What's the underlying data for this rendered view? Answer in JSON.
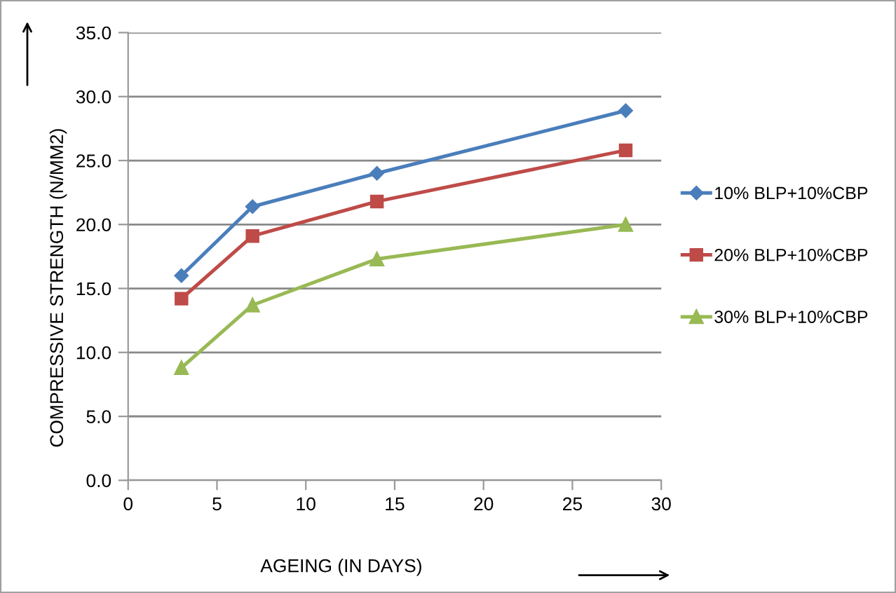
{
  "chart_data": {
    "type": "line",
    "xlabel": "AGEING (IN DAYS)",
    "ylabel": "COMPRESSIVE STRENGTH (N/MM2)",
    "x": [
      3,
      7,
      14,
      28
    ],
    "series": [
      {
        "name": "10% BLP+10%CBP",
        "color": "#4a7ebb",
        "marker": "diamond",
        "values": [
          16.0,
          21.4,
          24.0,
          28.9
        ]
      },
      {
        "name": "20% BLP+10%CBP",
        "color": "#be4b48",
        "marker": "square",
        "values": [
          14.2,
          19.1,
          21.8,
          25.8
        ]
      },
      {
        "name": "30% BLP+10%CBP",
        "color": "#98b954",
        "marker": "triangle",
        "values": [
          8.8,
          13.7,
          17.3,
          20.0
        ]
      }
    ],
    "xlim": [
      0,
      30
    ],
    "xticks": [
      0,
      5,
      10,
      15,
      20,
      25,
      30
    ],
    "ylim": [
      0,
      35
    ],
    "yticks": [
      {
        "value": 0,
        "label": "0.0"
      },
      {
        "value": 5,
        "label": "5.0"
      },
      {
        "value": 10,
        "label": "10.0"
      },
      {
        "value": 15,
        "label": "15.0"
      },
      {
        "value": 20,
        "label": "20.0"
      },
      {
        "value": 25,
        "label": "25.0"
      },
      {
        "value": 30,
        "label": "30.0"
      },
      {
        "value": 35,
        "label": "35.0"
      }
    ],
    "grid": "y",
    "legend": "right",
    "line_style": "solid"
  }
}
